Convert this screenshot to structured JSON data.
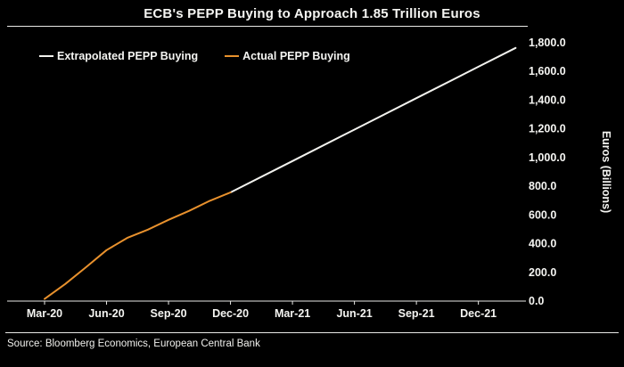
{
  "footer": {
    "source": "Source: Bloomberg Economics, European Central Bank"
  },
  "chart_data": {
    "type": "line",
    "title": "ECB's PEPP Buying to Approach 1.85 Trillion Euros",
    "xlabel": "",
    "ylabel": "Euros (Billions)",
    "grid": false,
    "legend_position": "top-left",
    "x_domain": [
      0,
      23
    ],
    "y_domain": [
      0,
      1800
    ],
    "x_ticks": [
      {
        "m": 0,
        "label": "Mar-20"
      },
      {
        "m": 3,
        "label": "Jun-20"
      },
      {
        "m": 6,
        "label": "Sep-20"
      },
      {
        "m": 9,
        "label": "Dec-20"
      },
      {
        "m": 12,
        "label": "Mar-21"
      },
      {
        "m": 15,
        "label": "Jun-21"
      },
      {
        "m": 18,
        "label": "Sep-21"
      },
      {
        "m": 21,
        "label": "Dec-21"
      }
    ],
    "y_ticks": [
      {
        "value": 0,
        "label": "0.0"
      },
      {
        "value": 200,
        "label": "200.0"
      },
      {
        "value": 400,
        "label": "400.0"
      },
      {
        "value": 600,
        "label": "600.0"
      },
      {
        "value": 800,
        "label": "800.0"
      },
      {
        "value": 1000,
        "label": "1,000.0"
      },
      {
        "value": 1200,
        "label": "1,200.0"
      },
      {
        "value": 1400,
        "label": "1,400.0"
      },
      {
        "value": 1600,
        "label": "1,600.0"
      },
      {
        "value": 1800,
        "label": "1,800.0"
      }
    ],
    "series": [
      {
        "name": "Extrapolated PEPP Buying",
        "color": "#f2f2ee",
        "points": [
          [
            9,
            757
          ],
          [
            12,
            976
          ],
          [
            15,
            1195
          ],
          [
            18,
            1414
          ],
          [
            21,
            1633
          ],
          [
            22.8,
            1764
          ]
        ]
      },
      {
        "name": "Actual PEPP Buying",
        "color": "#e8912d",
        "points": [
          [
            0,
            15
          ],
          [
            1,
            119
          ],
          [
            2,
            235
          ],
          [
            3,
            355
          ],
          [
            4,
            440
          ],
          [
            5,
            498
          ],
          [
            6,
            566
          ],
          [
            7,
            629
          ],
          [
            8,
            699
          ],
          [
            9,
            757
          ]
        ]
      }
    ]
  }
}
